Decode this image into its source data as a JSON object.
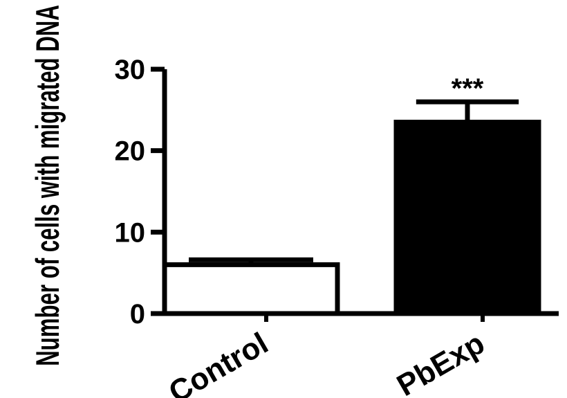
{
  "chart_data": {
    "type": "bar",
    "ylabel": "Number of cells with migrated DNA",
    "xlabel": "",
    "ylim": [
      0,
      30
    ],
    "yticks": [
      0,
      10,
      20,
      30
    ],
    "grid": false,
    "categories": [
      "Control",
      "PbExp"
    ],
    "values": [
      6,
      23.5
    ],
    "errors": [
      0.6,
      2.5
    ],
    "fill_colors": [
      "#ffffff",
      "#000000"
    ],
    "annotations": [
      "",
      "***"
    ]
  }
}
